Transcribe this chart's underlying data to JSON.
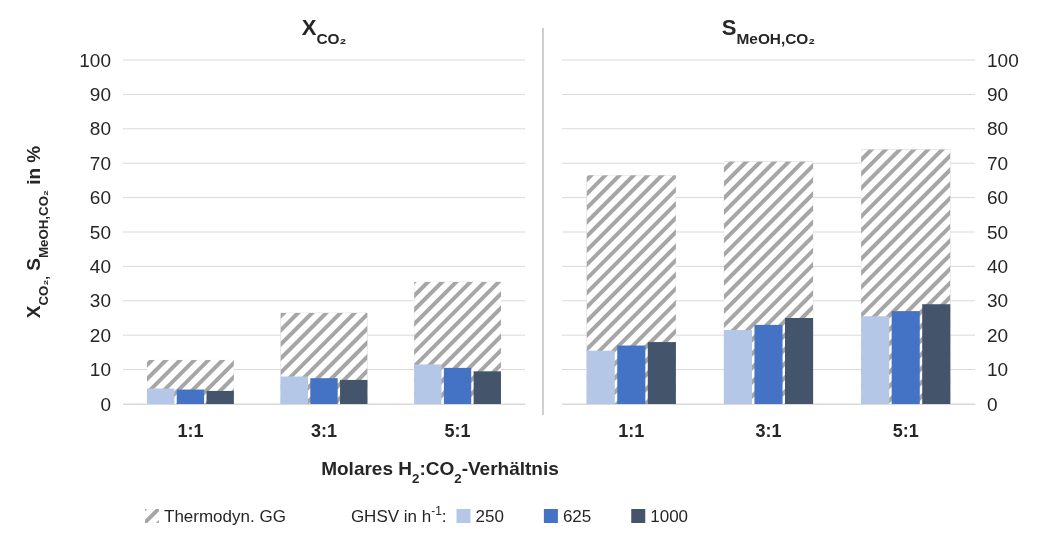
{
  "chart_data": [
    {
      "type": "bar",
      "title": "X$_{CO₂}$",
      "ylabel": "X$_{CO₂,}$ S$_{MeOH,CO₂}$ in %",
      "xlabel": "Molares H$_{2}$:CO$_{2}$-Verhältnis",
      "legend_title": "GHSV in h$^{-1}$:",
      "legend": "bottom",
      "grid": "y",
      "categories": [
        "1:1",
        "3:1",
        "5:1"
      ],
      "ylim": [
        0,
        100
      ],
      "yticks": [
        0,
        10,
        20,
        30,
        40,
        50,
        60,
        70,
        80,
        90,
        100
      ],
      "series": [
        {
          "name": "Thermodyn. GG",
          "color": "#a6a6a6",
          "values": [
            12.8,
            26.5,
            35.5
          ]
        },
        {
          "name": "250",
          "color": "#b4c7e7",
          "values": [
            4.5,
            8,
            11.5
          ]
        },
        {
          "name": "625",
          "color": "#4472c4",
          "values": [
            4.2,
            7.5,
            10.5
          ]
        },
        {
          "name": "1000",
          "color": "#44546a",
          "values": [
            3.8,
            7,
            9.5
          ]
        }
      ]
    },
    {
      "type": "bar",
      "title": "S$_{MeOH,CO₂}$",
      "grid": "y",
      "categories": [
        "1:1",
        "3:1",
        "5:1"
      ],
      "ylim": [
        0,
        100
      ],
      "yticks": [
        0,
        10,
        20,
        30,
        40,
        50,
        60,
        70,
        80,
        90,
        100
      ],
      "series": [
        {
          "color": "#a6a6a6",
          "values": [
            66.5,
            70.5,
            74
          ]
        },
        {
          "color": "#b4c7e7",
          "values": [
            15.5,
            21.5,
            25.5
          ]
        },
        {
          "color": "#4472c4",
          "values": [
            17,
            23,
            27
          ]
        },
        {
          "color": "#44546a",
          "values": [
            18,
            25,
            29
          ]
        }
      ]
    }
  ]
}
